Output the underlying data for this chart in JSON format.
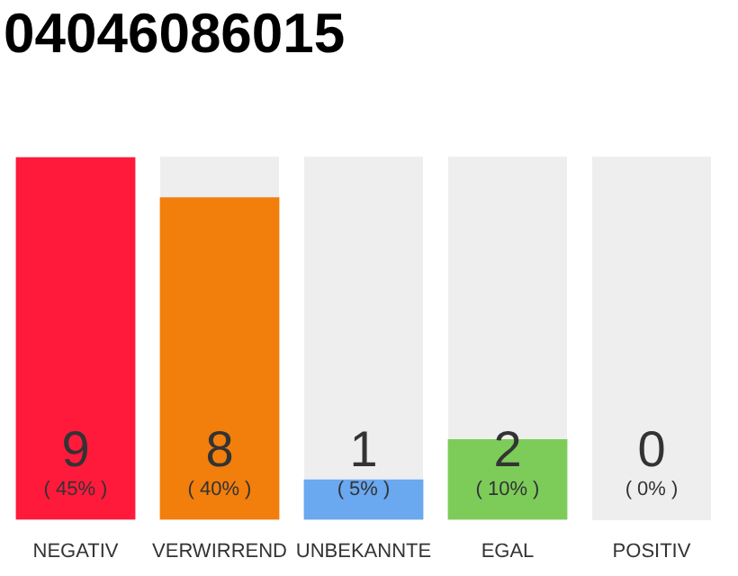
{
  "chart_data": {
    "type": "bar",
    "title": "04046086015",
    "categories": [
      "NEGATIV",
      "VERWIRREND",
      "UNBEKANNTE",
      "EGAL",
      "POSITIV"
    ],
    "values": [
      9,
      8,
      1,
      2,
      0
    ],
    "colors": [
      "#ff1a3c",
      "#f27e0c",
      "#6aa8f0",
      "#7dcc5a",
      "#cccccc"
    ],
    "value_labels": [
      "9\n( 45% )",
      "8\n( 40% )",
      "1\n( 5% )",
      "2\n( 10% )",
      "0\n( 0% )"
    ],
    "ylim": [
      0,
      9
    ],
    "tick_labels": "x",
    "grid": false,
    "legend": false
  }
}
